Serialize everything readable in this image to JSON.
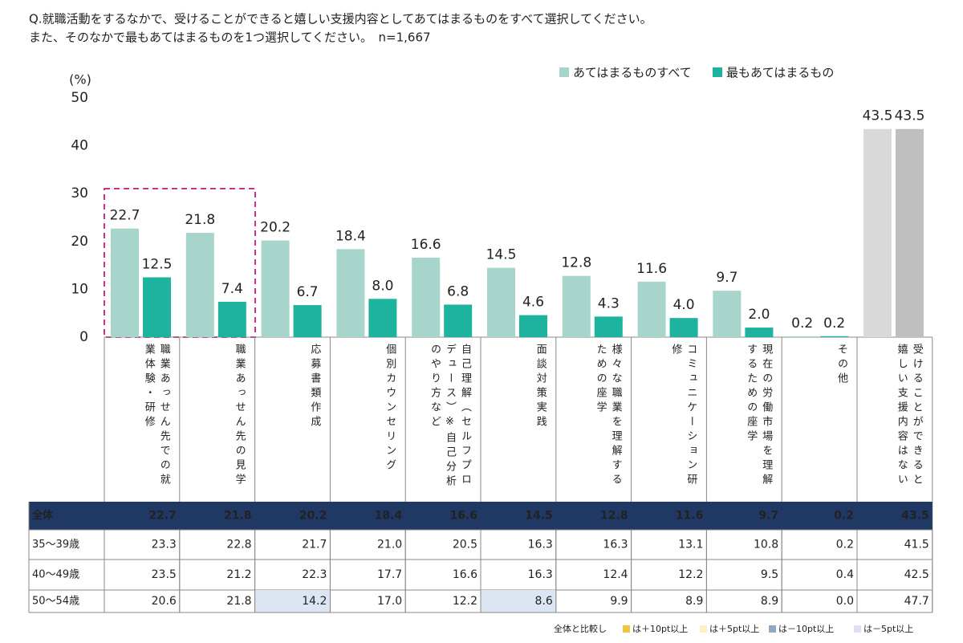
{
  "chart_data": {
    "type": "bar",
    "title": "Q.就職活動をするなかで、受けることができると嬉しい支援内容としてあてはまるものをすべて選択してください。",
    "subtitle": "また、そのなかで最もあてはまるものを1つ選択してください。　n=1,667",
    "y_label": "(%)",
    "categories": [
      "職業あっせん先での就業体験・研修",
      "職業あっせん先の見学",
      "応募書類作成",
      "個別カウンセリング",
      "自己理解（セルフプロデュース）※自己分析のやり方など",
      "面談対策実践",
      "様々な職業を理解するための座学",
      "コミュニケーション研修",
      "現在の労働市場を理解するための座学",
      "その他",
      "受けることができると嬉しい支援内容はない"
    ],
    "series": [
      {
        "name": "あてはまるものすべて",
        "color": "#a8d5cb",
        "colors": [
          "#a8d5cb",
          "#a8d5cb",
          "#a8d5cb",
          "#a8d5cb",
          "#a8d5cb",
          "#a8d5cb",
          "#a8d5cb",
          "#a8d5cb",
          "#a8d5cb",
          "#a8d5cb",
          "#d9d9d9"
        ],
        "values": [
          22.7,
          21.8,
          20.2,
          18.4,
          16.6,
          14.5,
          12.8,
          11.6,
          9.7,
          0.2,
          43.5
        ],
        "value_labels": [
          "22.7",
          "21.8",
          "20.2",
          "18.4",
          "16.6",
          "14.5",
          "12.8",
          "11.6",
          "9.7",
          "0.2",
          "43.5"
        ]
      },
      {
        "name": "最もあてはまるもの",
        "color": "#1db39e",
        "colors": [
          "#1db39e",
          "#1db39e",
          "#1db39e",
          "#1db39e",
          "#1db39e",
          "#1db39e",
          "#1db39e",
          "#1db39e",
          "#1db39e",
          "#1db39e",
          "#bfbfbf"
        ],
        "values": [
          12.5,
          7.4,
          6.7,
          8.0,
          6.8,
          4.6,
          4.3,
          4.0,
          2.0,
          0.2,
          43.5
        ],
        "value_labels": [
          "12.5",
          "7.4",
          "6.7",
          "8.0",
          "6.8",
          "4.6",
          "4.3",
          "4.0",
          "2.0",
          "0.2",
          "43.5"
        ]
      }
    ],
    "ylim": [
      0,
      50
    ],
    "yticks": [
      0,
      10,
      20,
      30,
      40,
      50
    ],
    "grid": false
  },
  "table": {
    "rows": [
      {
        "label": "全体",
        "values": [
          "22.7",
          "21.8",
          "20.2",
          "18.4",
          "16.6",
          "14.5",
          "12.8",
          "11.6",
          "9.7",
          "0.2",
          "43.5"
        ]
      },
      {
        "label": "35～39歳",
        "values": [
          "23.3",
          "22.8",
          "21.7",
          "21.0",
          "20.5",
          "16.3",
          "16.3",
          "13.1",
          "10.8",
          "0.2",
          "41.5"
        ]
      },
      {
        "label": "40～49歳",
        "values": [
          "23.5",
          "21.2",
          "22.3",
          "17.7",
          "16.6",
          "16.3",
          "12.4",
          "12.2",
          "9.5",
          "0.4",
          "42.5"
        ]
      },
      {
        "label": "50～54歳",
        "values": [
          "20.6",
          "21.8",
          "14.2",
          "17.0",
          "12.2",
          "8.6",
          "9.9",
          "8.9",
          "8.9",
          "0.0",
          "47.7"
        ],
        "cell_colors": [
          null,
          null,
          "#dce6f2",
          null,
          null,
          "#dce6f2",
          null,
          null,
          null,
          null,
          null
        ]
      }
    ]
  },
  "comparison_legend": {
    "title": "全体と比較し",
    "items": [
      {
        "color": "#f5c342",
        "label": "は＋10pt以上"
      },
      {
        "color": "#fdf1c4",
        "label": "は＋5pt以上"
      },
      {
        "color": "#8ea9c8",
        "label": "は－10pt以上"
      },
      {
        "color": "#d9e1f2",
        "label": "は－5pt以上"
      }
    ]
  }
}
